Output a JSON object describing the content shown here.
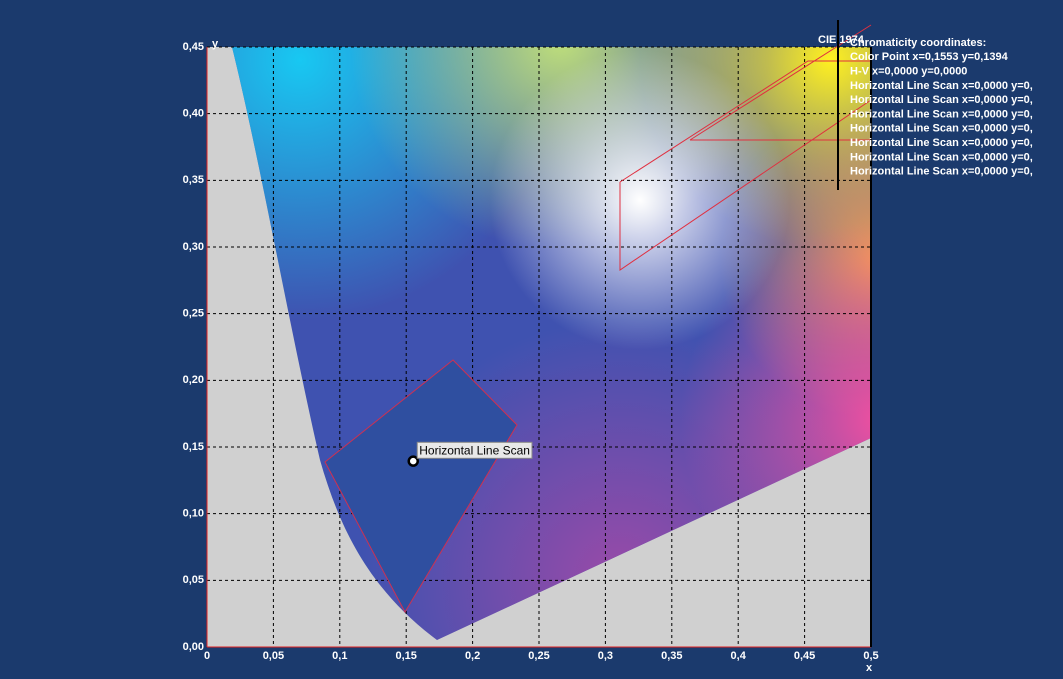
{
  "chart_data": {
    "type": "scatter",
    "title": "CIE 1974",
    "x_label": "x",
    "y_label": "y",
    "x": [
      0.1553
    ],
    "values": [
      0.1394
    ],
    "annotation": "Horizontal Line Scan",
    "color": "#000000",
    "xlim": [
      0,
      0.5
    ],
    "ylim": [
      0,
      0.45
    ],
    "xticks": [
      0,
      {
        "value": 0.05,
        "label": "0,05"
      },
      {
        "value": 0.1,
        "label": "0,1"
      },
      {
        "value": 0.15,
        "label": "0,15"
      },
      {
        "value": 0.2,
        "label": "0,2"
      },
      {
        "value": 0.25,
        "label": "0,25"
      },
      {
        "value": 0.3,
        "label": "0,3"
      },
      {
        "value": 0.35,
        "label": "0,35"
      },
      {
        "value": 0.4,
        "label": "0,4"
      },
      {
        "value": 0.45,
        "label": "0,45"
      },
      {
        "value": 0.5,
        "label": "0,5"
      }
    ],
    "yticks": [
      {
        "value": 0,
        "label": "0,00"
      },
      {
        "value": 0.05,
        "label": "0,05"
      },
      {
        "value": 0.1,
        "label": "0,10"
      },
      {
        "value": 0.15,
        "label": "0,15"
      },
      {
        "value": 0.2,
        "label": "0,20"
      },
      {
        "value": 0.25,
        "label": "0,25"
      },
      {
        "value": 0.3,
        "label": "0,30"
      },
      {
        "value": 0.35,
        "label": "0,35"
      },
      {
        "value": 0.4,
        "label": "0,40"
      },
      {
        "value": 0.45,
        "label": "0,45"
      }
    ],
    "grid": true,
    "info_lines": [
      "Chromaticity coordinates:",
      "Color Point x=0,1553 y=0,1394",
      "H-V x=0,0000 y=0,0000",
      "Horizontal Line Scan x=0,0000 y=0,",
      "Horizontal Line Scan x=0,0000 y=0,",
      "Horizontal Line Scan x=0,0000 y=0,",
      "Horizontal Line Scan x=0,0000 y=0,",
      "Horizontal Line Scan x=0,0000 y=0,",
      "Horizontal Line Scan x=0,0000 y=0,",
      "Horizontal Line Scan x=0,0000 y=0,"
    ]
  }
}
